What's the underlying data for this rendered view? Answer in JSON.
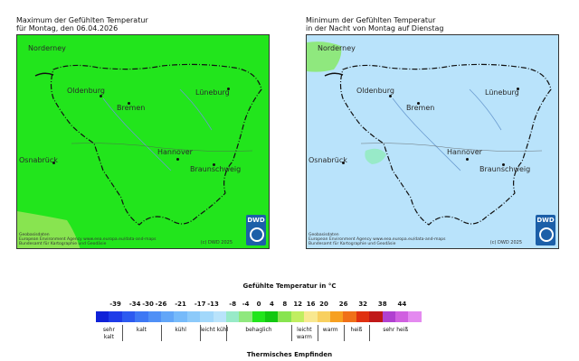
{
  "left_panel": {
    "title_line1": "Maximum der Gefühlten Temperatur",
    "title_line2": "für Montag, den 06.04.2026",
    "fill_color": "#22e51c",
    "accent_color": "#88e450",
    "cities": [
      "Norderney",
      "Oldenburg",
      "Bremen",
      "Lüneburg",
      "Osnabrück",
      "Hannover",
      "Braunschweig"
    ],
    "attribution": "Geobasisdaten\nEuropean Environment Agency www.eea.europa.eu/data-and-maps\nBundesamt für Kartographie und Geodäsie",
    "copyright": "(c) DWD 2025",
    "logo_text": "DWD"
  },
  "right_panel": {
    "title_line1": "Minimum der Gefühlten Temperatur",
    "title_line2": "in der Nacht von Montag auf Dienstag",
    "fill_color": "#b9e3fb",
    "accent_color": "#8fe87e",
    "cities": [
      "Norderney",
      "Oldenburg",
      "Bremen",
      "Lüneburg",
      "Osnabrück",
      "Hannover",
      "Braunschweig"
    ],
    "attribution": "Geobasisdaten\nEuropean Environment Agency www.eea.europa.eu/data-and-maps\nBundesamt für Kartographie und Geodäsie",
    "copyright": "(c) DWD 2025",
    "logo_text": "DWD"
  },
  "legend": {
    "title": "Gefühlte Temperatur in °C",
    "ticks": [
      "-39",
      "-34",
      "-30",
      "-26",
      "-21",
      "-17",
      "-13",
      "-8",
      "-4",
      "0",
      "4",
      "8",
      "12",
      "16",
      "20",
      "26",
      "32",
      "38",
      "44"
    ],
    "colors": [
      "#1022d8",
      "#1e3ce8",
      "#2c5af0",
      "#3e78f4",
      "#5090f6",
      "#62a6f8",
      "#76bafa",
      "#8ccafa",
      "#a2d8fb",
      "#b9e3fb",
      "#98eac8",
      "#8fe87e",
      "#22e51c",
      "#12c810",
      "#88e450",
      "#c0ee60",
      "#f8e890",
      "#f8d060",
      "#f7a020",
      "#f07018",
      "#e03010",
      "#c01818",
      "#b040d0",
      "#d060e0",
      "#e48af0"
    ],
    "categories": [
      "sehr\nkalt",
      "kalt",
      "kühl",
      "leicht kühl",
      "behaglich",
      "leicht\nwarm",
      "warm",
      "heiß",
      "sehr heiß"
    ],
    "sensation_label": "Thermisches Empfinden"
  }
}
